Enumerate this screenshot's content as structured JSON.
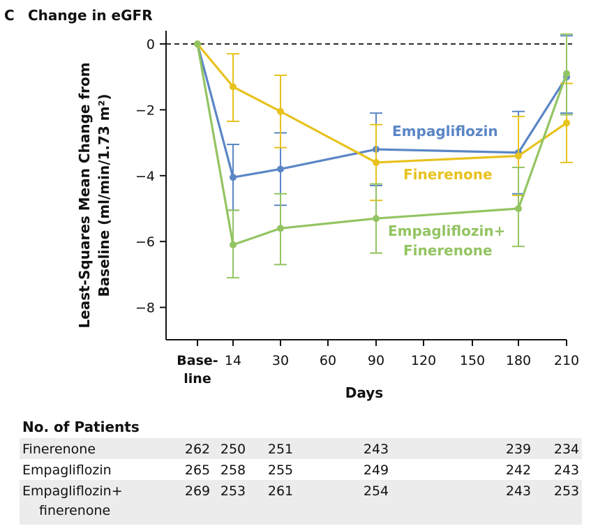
{
  "panel": {
    "letter": "C",
    "title": "Change in eGFR"
  },
  "chart_data": {
    "type": "line",
    "ylabel_line1": "Least-Squares Mean Change from",
    "ylabel_line2": "Baseline (ml/min/1.73 m²)",
    "xlabel": "Days",
    "ylim": [
      -9,
      0.4
    ],
    "yticks": [
      0,
      -2,
      -4,
      -6,
      -8
    ],
    "ytick_labels": [
      "0",
      "−2",
      "−4",
      "−6",
      "−8"
    ],
    "xticks": [
      0,
      14,
      30,
      60,
      90,
      120,
      150,
      180,
      210
    ],
    "xtick_labels": [
      "Base-\nline",
      "14",
      "30",
      "60",
      "90",
      "120",
      "150",
      "180",
      "210"
    ],
    "reference_line": 0,
    "grid": false,
    "series": [
      {
        "name": "Empagliflozin",
        "color": "#5b86c6",
        "x": [
          0,
          14,
          30,
          90,
          180,
          210
        ],
        "y": [
          0,
          -4.05,
          -3.8,
          -3.2,
          -3.3,
          -1.0
        ],
        "ci_low": [
          0,
          -5.05,
          -4.9,
          -4.3,
          -4.55,
          -2.1
        ],
        "ci_high": [
          0,
          -3.05,
          -2.7,
          -2.1,
          -2.05,
          0.25
        ]
      },
      {
        "name": "Finerenone",
        "color": "#e8c21e",
        "x": [
          0,
          14,
          30,
          90,
          180,
          210
        ],
        "y": [
          0,
          -1.3,
          -2.05,
          -3.6,
          -3.4,
          -2.4
        ],
        "ci_low": [
          0,
          -2.35,
          -3.15,
          -4.75,
          -4.6,
          -3.6
        ],
        "ci_high": [
          0,
          -0.3,
          -0.95,
          -2.45,
          -2.2,
          -1.2
        ]
      },
      {
        "name": "Empagliflozin+\nFinerenone",
        "color": "#93c462",
        "x": [
          0,
          14,
          30,
          90,
          180,
          210
        ],
        "y": [
          0,
          -6.1,
          -5.6,
          -5.3,
          -5.0,
          -0.9
        ],
        "ci_low": [
          0,
          -7.1,
          -6.7,
          -6.35,
          -6.15,
          -2.15
        ],
        "ci_high": [
          0,
          -5.05,
          -4.55,
          -4.25,
          -3.75,
          0.3
        ]
      }
    ]
  },
  "patients_table": {
    "title": "No. of Patients",
    "columns_x": [
      0,
      14,
      30,
      90,
      180,
      210
    ],
    "rows": [
      {
        "label": "Finerenone",
        "values": [
          "262",
          "250",
          "251",
          "243",
          "239",
          "234"
        ],
        "shaded": true
      },
      {
        "label": "Empagliflozin",
        "values": [
          "265",
          "258",
          "255",
          "249",
          "242",
          "243"
        ],
        "shaded": false
      },
      {
        "label": "Empagliflozin+\nfinerenone",
        "values": [
          "269",
          "253",
          "261",
          "254",
          "243",
          "253"
        ],
        "shaded": true
      }
    ]
  },
  "colors": {
    "axis": "#111111",
    "shade": "#ececec"
  }
}
